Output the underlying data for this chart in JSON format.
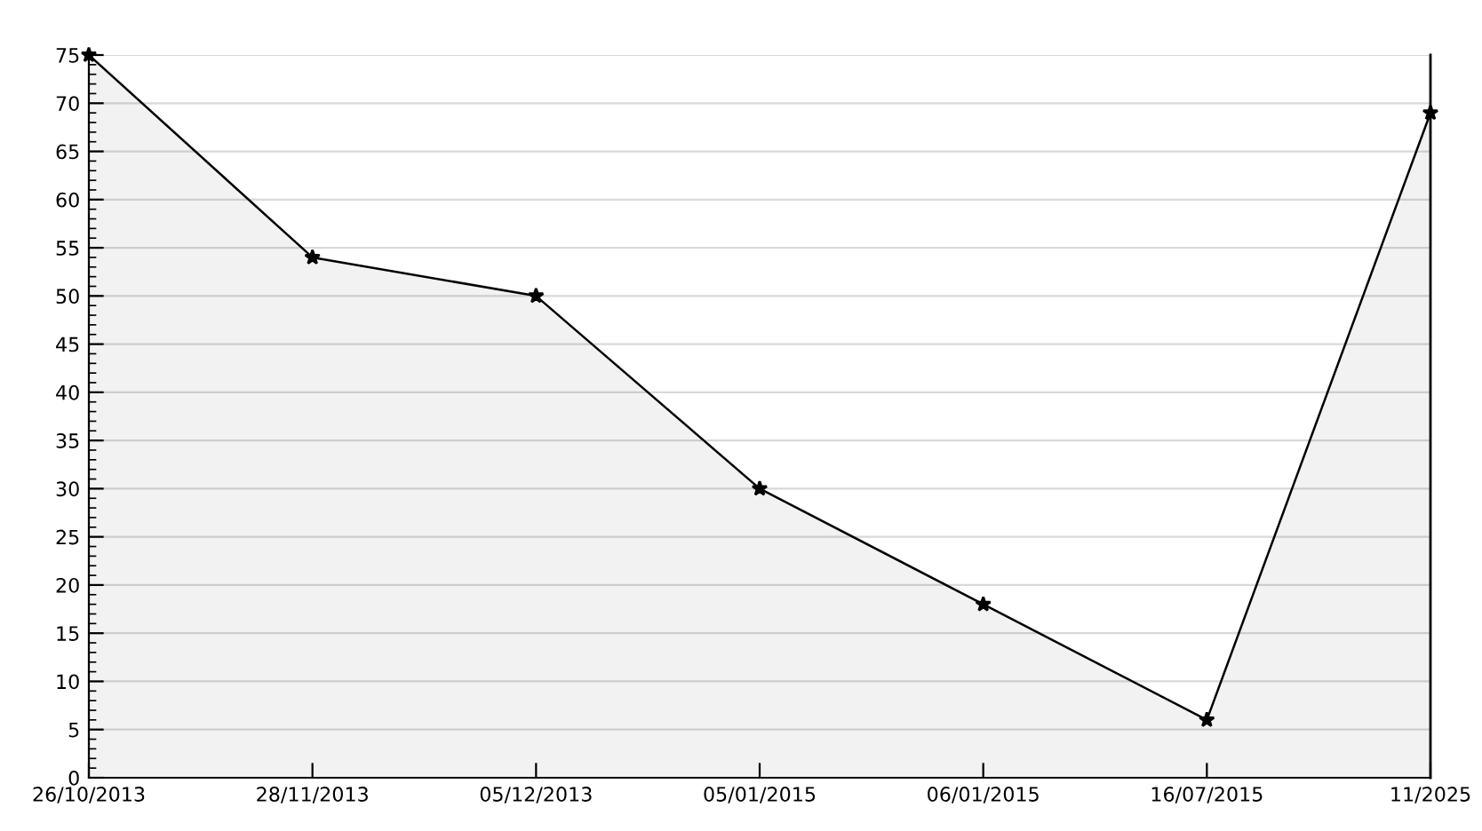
{
  "chart_data": {
    "type": "area",
    "categories": [
      "26/10/2013",
      "28/11/2013",
      "05/12/2013",
      "05/01/2015",
      "06/01/2015",
      "16/07/2015",
      "11/2025"
    ],
    "series": [
      {
        "color": "#000000",
        "values": [
          75,
          54,
          50,
          30,
          18,
          6,
          69
        ]
      }
    ],
    "ylim": [
      0,
      75
    ],
    "yticks": [
      0,
      5,
      10,
      15,
      20,
      25,
      30,
      35,
      40,
      45,
      50,
      55,
      60,
      65,
      70,
      75
    ],
    "grid": "y",
    "marker": "star",
    "line_style": "solid",
    "legend": false
  }
}
